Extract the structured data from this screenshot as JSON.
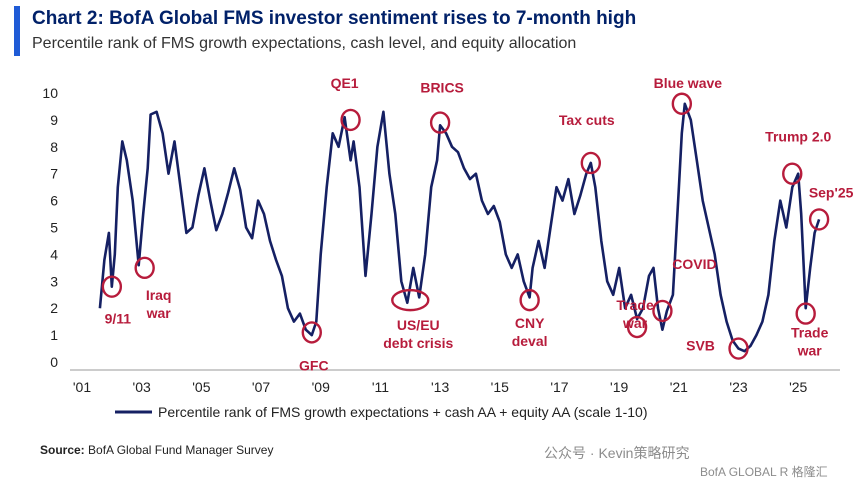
{
  "header": {
    "title": "Chart 2: BofA Global FMS investor sentiment rises to 7-month high",
    "subtitle": "Percentile rank of FMS growth expectations, cash level, and equity allocation"
  },
  "footer": {
    "source_label": "Source:",
    "source_text": "BofA Global Fund Manager Survey",
    "watermark": "公众号 · Kevin策略研究",
    "brand": "BofA GLOBAL R",
    "brand_suffix": "格隆汇"
  },
  "colors": {
    "line": "#152063",
    "annotation": "#b71c3c",
    "accent": "#1f5bd6",
    "title": "#012169"
  },
  "chart_data": {
    "type": "line",
    "title": "Chart 2: BofA Global FMS investor sentiment rises to 7-month high",
    "subtitle": "Percentile rank of FMS growth expectations, cash level, and equity allocation",
    "x_tick_labels": [
      "'01",
      "'03",
      "'05",
      "'07",
      "'09",
      "'11",
      "'13",
      "'15",
      "'17",
      "'19",
      "'21",
      "'23",
      "'25"
    ],
    "y_ticks": [
      0,
      1,
      2,
      3,
      4,
      5,
      6,
      7,
      8,
      9,
      10
    ],
    "xlim": [
      2001,
      2026.4
    ],
    "ylim": [
      0,
      10
    ],
    "grid": false,
    "legend_position": "bottom",
    "series": [
      {
        "name": "Percentile rank of FMS growth expectations + cash AA + equity AA (scale 1-10)",
        "color": "#152063",
        "x": [
          2001.6,
          2001.75,
          2001.9,
          2002.0,
          2002.1,
          2002.2,
          2002.35,
          2002.5,
          2002.7,
          2002.9,
          2003.05,
          2003.2,
          2003.3,
          2003.5,
          2003.7,
          2003.9,
          2004.1,
          2004.3,
          2004.5,
          2004.7,
          2004.9,
          2005.1,
          2005.3,
          2005.5,
          2005.7,
          2005.9,
          2006.1,
          2006.3,
          2006.5,
          2006.7,
          2006.9,
          2007.1,
          2007.3,
          2007.5,
          2007.7,
          2007.9,
          2008.1,
          2008.3,
          2008.5,
          2008.7,
          2008.85,
          2009.0,
          2009.2,
          2009.4,
          2009.6,
          2009.8,
          2010.0,
          2010.1,
          2010.3,
          2010.5,
          2010.7,
          2010.9,
          2011.1,
          2011.3,
          2011.5,
          2011.7,
          2011.9,
          2012.1,
          2012.3,
          2012.5,
          2012.7,
          2012.9,
          2013.0,
          2013.2,
          2013.4,
          2013.6,
          2013.8,
          2014.0,
          2014.2,
          2014.4,
          2014.6,
          2014.8,
          2015.0,
          2015.2,
          2015.4,
          2015.6,
          2015.8,
          2016.0,
          2016.1,
          2016.3,
          2016.5,
          2016.7,
          2016.9,
          2017.1,
          2017.3,
          2017.5,
          2017.7,
          2017.9,
          2018.05,
          2018.2,
          2018.4,
          2018.6,
          2018.8,
          2019.0,
          2019.2,
          2019.4,
          2019.6,
          2019.8,
          2020.0,
          2020.15,
          2020.3,
          2020.45,
          2020.6,
          2020.8,
          2021.0,
          2021.1,
          2021.2,
          2021.4,
          2021.6,
          2021.8,
          2022.0,
          2022.2,
          2022.4,
          2022.6,
          2022.8,
          2023.0,
          2023.2,
          2023.4,
          2023.6,
          2023.8,
          2024.0,
          2024.2,
          2024.4,
          2024.6,
          2024.8,
          2025.0,
          2025.1,
          2025.25,
          2025.4,
          2025.55,
          2025.7
        ],
        "values": [
          2.0,
          3.8,
          4.8,
          2.8,
          4.0,
          6.5,
          8.2,
          7.5,
          6.0,
          3.6,
          5.5,
          7.2,
          9.2,
          9.3,
          8.5,
          7.0,
          8.2,
          6.5,
          4.8,
          5.0,
          6.2,
          7.2,
          6.0,
          4.9,
          5.5,
          6.3,
          7.2,
          6.4,
          5.0,
          4.6,
          6.0,
          5.5,
          4.5,
          3.8,
          3.2,
          2.0,
          1.5,
          1.8,
          1.2,
          1.0,
          1.5,
          4.0,
          6.5,
          8.5,
          8.0,
          9.1,
          7.5,
          8.2,
          6.5,
          3.2,
          5.5,
          8.0,
          9.3,
          7.0,
          5.5,
          3.0,
          2.2,
          3.5,
          2.4,
          4.0,
          6.5,
          7.5,
          8.8,
          8.5,
          8.0,
          7.8,
          7.2,
          6.8,
          7.0,
          6.0,
          5.5,
          5.8,
          5.2,
          4.0,
          3.5,
          4.0,
          3.0,
          2.4,
          3.5,
          4.5,
          3.5,
          5.0,
          6.5,
          6.0,
          6.8,
          5.5,
          6.2,
          7.0,
          7.4,
          6.5,
          4.5,
          3.0,
          2.5,
          3.5,
          2.0,
          2.5,
          1.6,
          2.0,
          3.2,
          3.5,
          2.0,
          1.2,
          1.9,
          2.5,
          6.5,
          8.5,
          9.6,
          9.0,
          7.5,
          6.0,
          5.0,
          4.0,
          2.5,
          1.5,
          0.8,
          0.5,
          0.4,
          0.6,
          1.0,
          1.5,
          2.5,
          4.5,
          6.0,
          5.0,
          6.5,
          7.0,
          5.5,
          2.0,
          3.5,
          4.8,
          5.3
        ]
      }
    ],
    "annotations": [
      {
        "text": "9/11",
        "x": 2002.0,
        "y": 2.8
      },
      {
        "text": "Iraq war",
        "x": 2003.1,
        "y": 3.5
      },
      {
        "text": "GFC",
        "x": 2008.7,
        "y": 1.1
      },
      {
        "text": "QE1",
        "x": 2010.0,
        "y": 9.0
      },
      {
        "text": "US/EU debt crisis",
        "x": 2012.0,
        "y": 2.3
      },
      {
        "text": "BRICS",
        "x": 2013.0,
        "y": 8.9
      },
      {
        "text": "CNY deval",
        "x": 2016.0,
        "y": 2.3
      },
      {
        "text": "Tax cuts",
        "x": 2018.05,
        "y": 7.4
      },
      {
        "text": "Trade war",
        "x": 2019.6,
        "y": 1.3
      },
      {
        "text": "COVID",
        "x": 2020.45,
        "y": 1.9
      },
      {
        "text": "SVB",
        "x": 2023.0,
        "y": 0.5
      },
      {
        "text": "Blue wave",
        "x": 2021.1,
        "y": 9.6
      },
      {
        "text": "Trump 2.0",
        "x": 2024.8,
        "y": 7.0
      },
      {
        "text": "Trade war",
        "x": 2025.25,
        "y": 1.8
      },
      {
        "text": "Sep'25",
        "x": 2025.7,
        "y": 5.3
      }
    ]
  }
}
